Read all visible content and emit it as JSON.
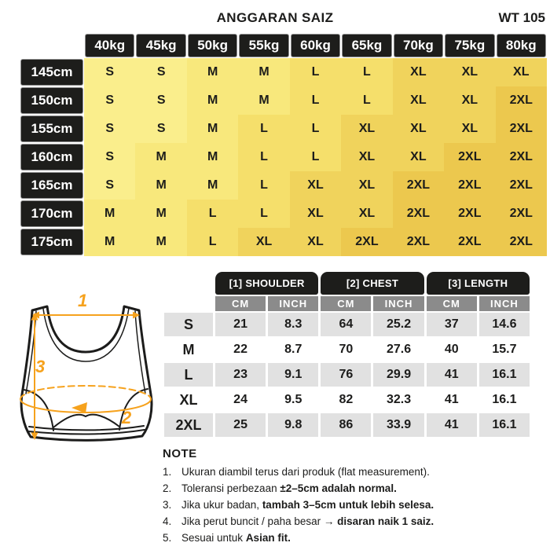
{
  "header": {
    "title": "ANGGARAN SAIZ",
    "product_code": "WT 105"
  },
  "chart_data": [
    {
      "type": "table",
      "columns": [
        "40kg",
        "45kg",
        "50kg",
        "55kg",
        "60kg",
        "65kg",
        "70kg",
        "75kg",
        "80kg"
      ],
      "rows": [
        {
          "height": "145cm",
          "sizes": [
            "S",
            "S",
            "M",
            "M",
            "L",
            "L",
            "XL",
            "XL",
            "XL"
          ]
        },
        {
          "height": "150cm",
          "sizes": [
            "S",
            "S",
            "M",
            "M",
            "L",
            "L",
            "XL",
            "XL",
            "2XL"
          ]
        },
        {
          "height": "155cm",
          "sizes": [
            "S",
            "S",
            "M",
            "L",
            "L",
            "XL",
            "XL",
            "XL",
            "2XL"
          ]
        },
        {
          "height": "160cm",
          "sizes": [
            "S",
            "M",
            "M",
            "L",
            "L",
            "XL",
            "XL",
            "2XL",
            "2XL"
          ]
        },
        {
          "height": "165cm",
          "sizes": [
            "S",
            "M",
            "M",
            "L",
            "XL",
            "XL",
            "2XL",
            "2XL",
            "2XL"
          ]
        },
        {
          "height": "170cm",
          "sizes": [
            "M",
            "M",
            "L",
            "L",
            "XL",
            "XL",
            "2XL",
            "2XL",
            "2XL"
          ]
        },
        {
          "height": "175cm",
          "sizes": [
            "M",
            "M",
            "L",
            "XL",
            "XL",
            "2XL",
            "2XL",
            "2XL",
            "2XL"
          ]
        }
      ],
      "size_colors": {
        "S": "#FAEE8C",
        "M": "#F8E87C",
        "L": "#F5DF6B",
        "XL": "#F0D35C",
        "2XL": "#ECC84E"
      }
    },
    {
      "type": "table",
      "groups": [
        "[1] SHOULDER",
        "[2] CHEST",
        "[3] LENGTH"
      ],
      "units": [
        "CM",
        "INCH",
        "CM",
        "INCH",
        "CM",
        "INCH"
      ],
      "rows": [
        {
          "size": "S",
          "values": [
            "21",
            "8.3",
            "64",
            "25.2",
            "37",
            "14.6"
          ]
        },
        {
          "size": "M",
          "values": [
            "22",
            "8.7",
            "70",
            "27.6",
            "40",
            "15.7"
          ]
        },
        {
          "size": "L",
          "values": [
            "23",
            "9.1",
            "76",
            "29.9",
            "41",
            "16.1"
          ]
        },
        {
          "size": "XL",
          "values": [
            "24",
            "9.5",
            "82",
            "32.3",
            "41",
            "16.1"
          ]
        },
        {
          "size": "2XL",
          "values": [
            "25",
            "9.8",
            "86",
            "33.9",
            "41",
            "16.1"
          ]
        }
      ]
    }
  ],
  "diagram": {
    "label_shoulder": "1",
    "label_chest": "2",
    "label_length": "3",
    "accent_color": "#F6A21D"
  },
  "note": {
    "title": "NOTE",
    "items": [
      {
        "num": "1.",
        "text": "Ukuran diambil terus dari produk (flat measurement).",
        "bold": ""
      },
      {
        "num": "2.",
        "text": "Toleransi perbezaan ",
        "bold": "±2–5cm adalah normal."
      },
      {
        "num": "3.",
        "text": "Jika ukur badan, ",
        "bold": "tambah 3–5cm untuk lebih selesa."
      },
      {
        "num": "4.",
        "text": "Jika perut buncit / paha besar → ",
        "bold": "disaran naik 1 saiz."
      },
      {
        "num": "5.",
        "text": "Sesuai untuk ",
        "bold": "Asian fit."
      }
    ]
  }
}
